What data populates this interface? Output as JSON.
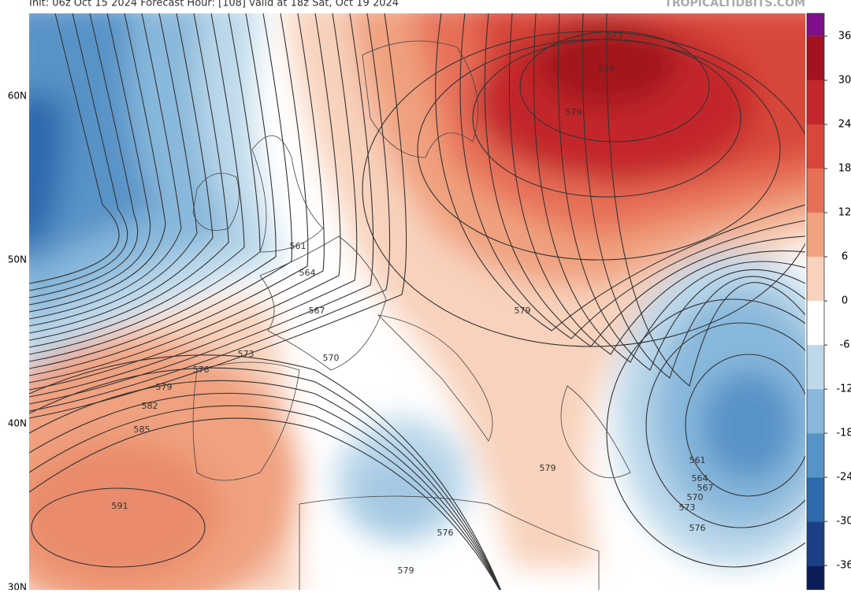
{
  "header": {
    "left": "Init: 06z Oct 15 2024   Forecast Hour: [108]   valid at 18z Sat, Oct 19 2024",
    "right": "TROPICALTIDBITS.COM"
  },
  "latitudes": [
    "60N",
    "50N",
    "40N",
    "30N"
  ],
  "colorbar": {
    "lim": [
      -39.3,
      39.1
    ],
    "ticks": [
      36,
      30,
      24,
      18,
      12,
      6,
      0,
      -6,
      -12,
      -18,
      -24,
      -30,
      -36
    ],
    "colors": [
      "#7d108a",
      "#a3131f",
      "#c3262b",
      "#d8473a",
      "#e76f58",
      "#f0a17f",
      "#f8d2bc",
      "#ffffff",
      "#bcd8ea",
      "#88b8db",
      "#5893c7",
      "#2f69ad",
      "#1b3f86",
      "#0c1d5a"
    ]
  },
  "contour_labels": [
    573,
    576,
    579,
    561,
    564,
    567,
    570,
    573,
    576,
    579,
    582,
    585,
    591,
    579,
    579,
    576,
    579,
    561,
    564,
    567,
    570,
    573,
    576
  ]
}
